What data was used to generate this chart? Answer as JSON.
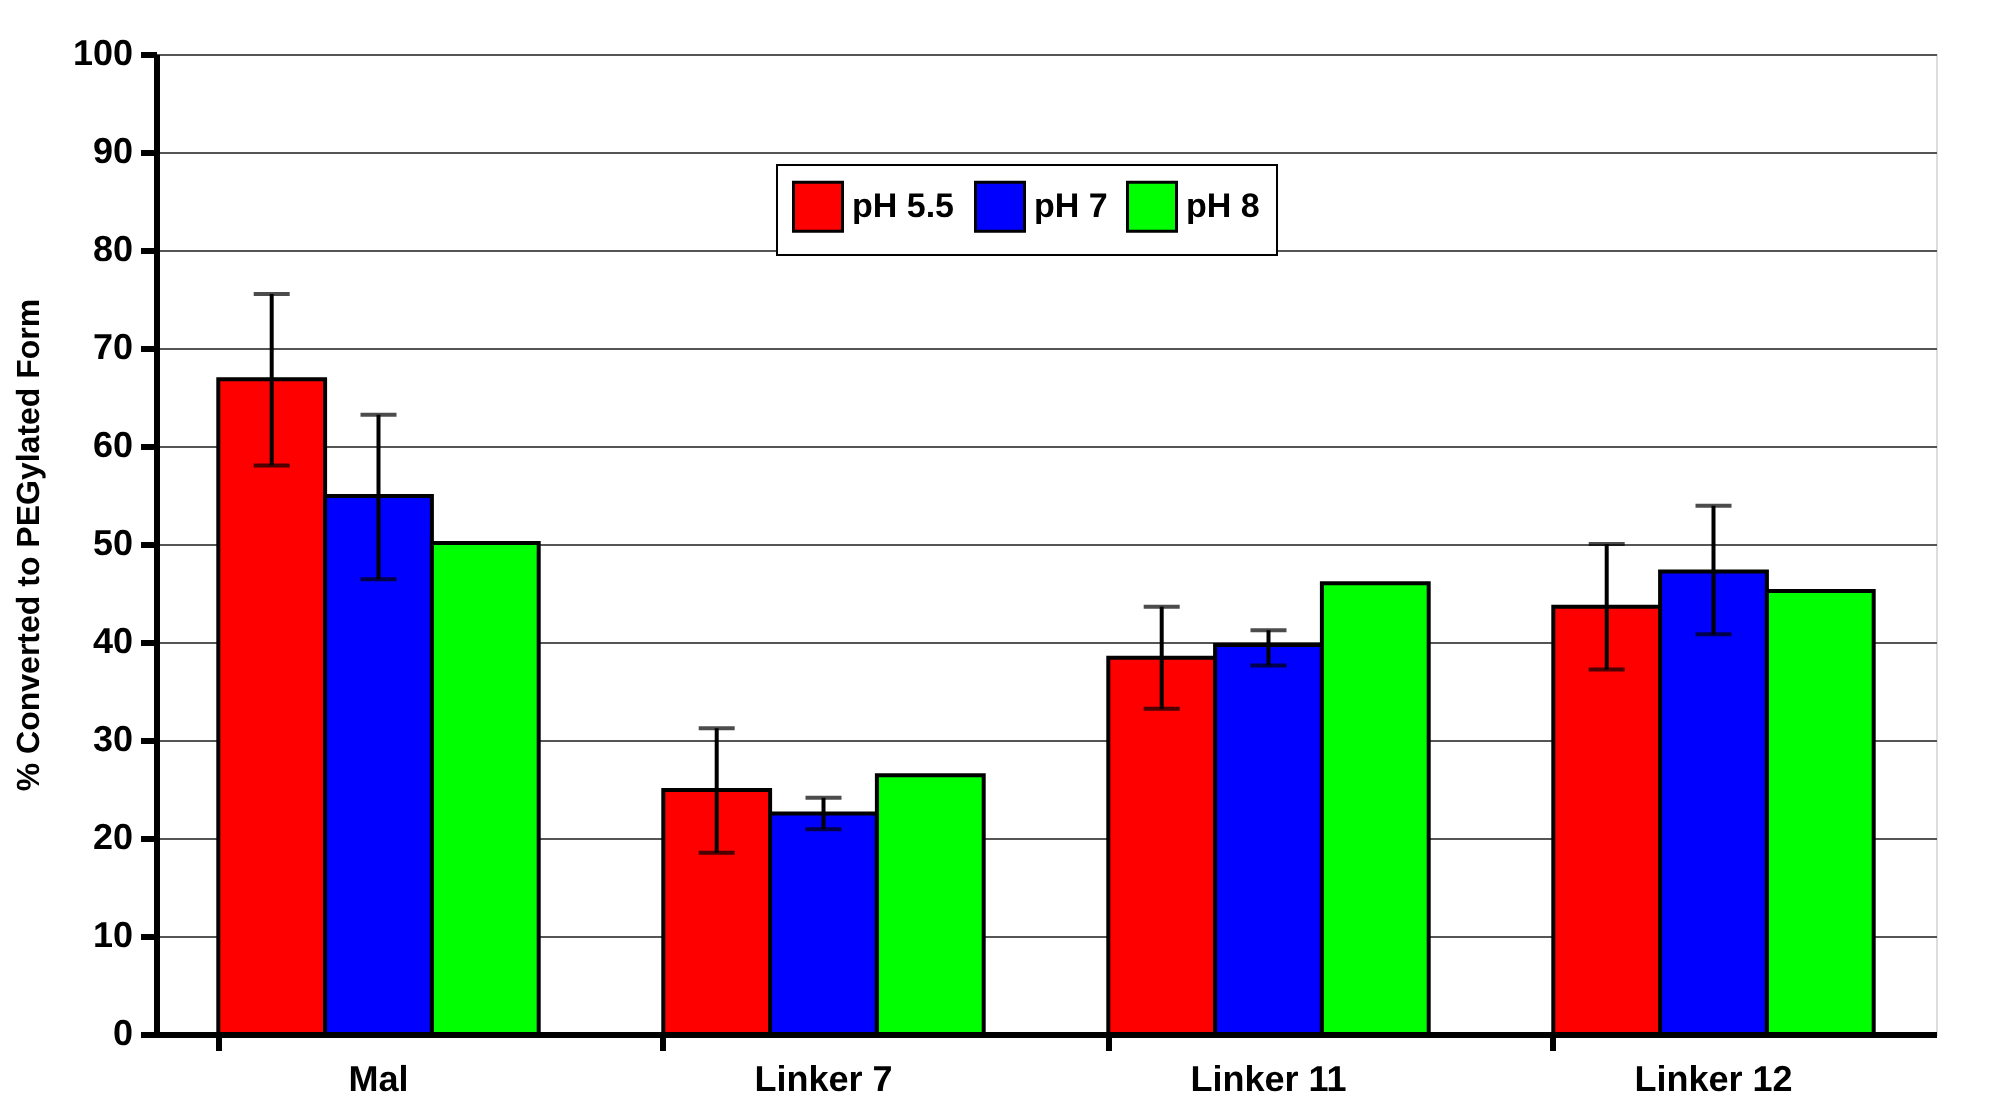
{
  "chart_data": {
    "type": "bar",
    "ylabel": "% Converted to PEGylated Form",
    "categories": [
      "Mal",
      "Linker 7",
      "Linker 11",
      "Linker 12"
    ],
    "series": [
      {
        "name": "pH 5.5",
        "color": "#ff0000",
        "values": [
          66.8,
          24.9,
          38.4,
          43.6
        ],
        "errors": [
          [
            58.0,
            75.5
          ],
          [
            18.5,
            31.2
          ],
          [
            33.2,
            43.6
          ],
          [
            37.2,
            50.0
          ]
        ]
      },
      {
        "name": "pH 7",
        "color": "#0000ff",
        "values": [
          54.9,
          22.5,
          39.7,
          47.2
        ],
        "errors": [
          [
            46.4,
            63.2
          ],
          [
            20.9,
            24.1
          ],
          [
            37.6,
            41.2
          ],
          [
            40.8,
            53.9
          ]
        ]
      },
      {
        "name": "pH 8",
        "color": "#00ff00",
        "values": [
          50.1,
          26.4,
          46.0,
          45.2
        ],
        "errors": [
          null,
          null,
          null,
          null
        ]
      }
    ],
    "ylim": [
      0,
      100
    ],
    "yticks": [
      0,
      10,
      20,
      30,
      40,
      50,
      60,
      70,
      80,
      90,
      100
    ],
    "grid": "y",
    "legend": "top"
  }
}
